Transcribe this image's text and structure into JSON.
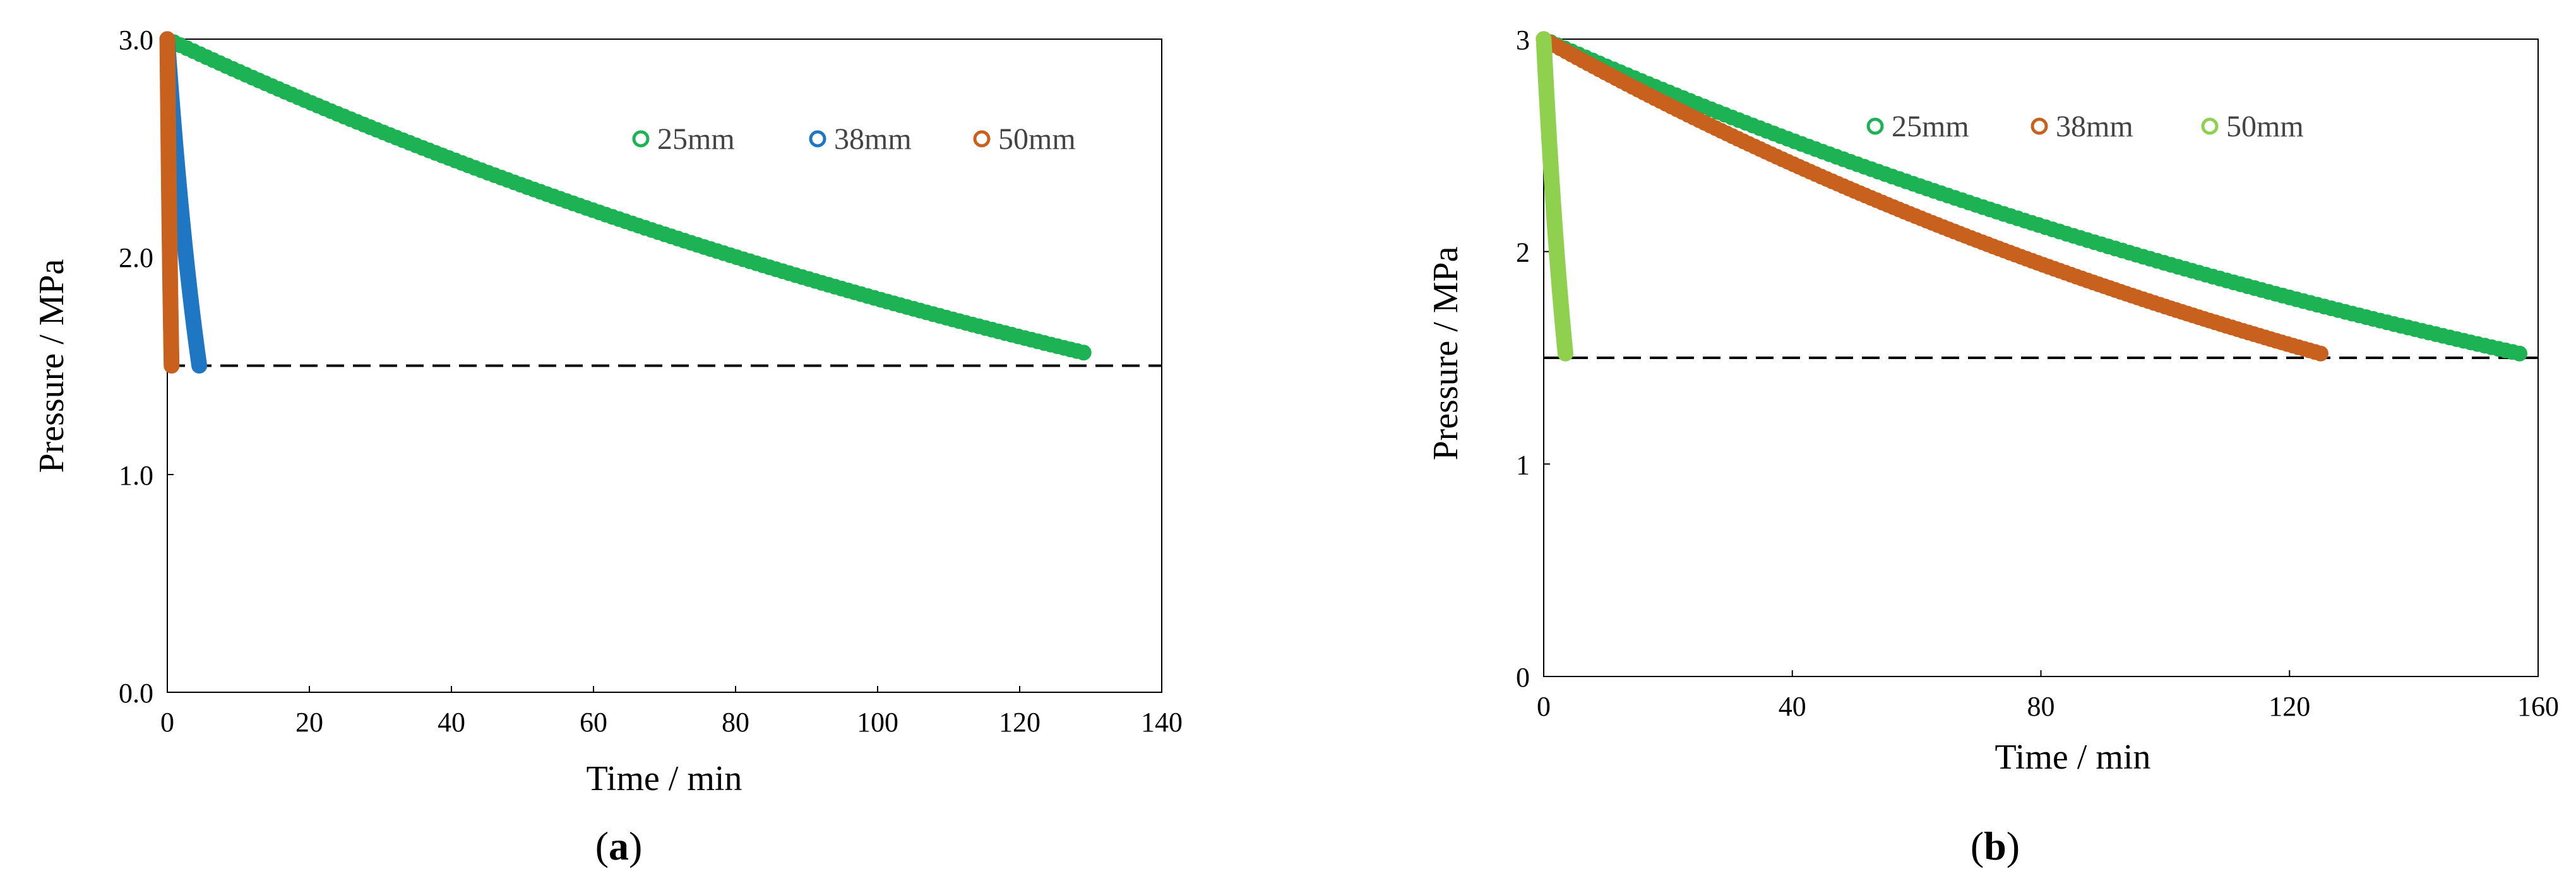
{
  "chart_data": [
    {
      "type": "scatter",
      "panel": "a",
      "caption_open": "(",
      "caption_letter": "a",
      "caption_close": ")",
      "xlabel": "Time / min",
      "ylabel": "Pressure / MPa",
      "xlim": [
        0,
        140
      ],
      "ylim": [
        0,
        3
      ],
      "x_ticks": [
        0,
        20,
        40,
        60,
        80,
        100,
        120,
        140
      ],
      "x_tick_labels": [
        "0",
        "20",
        "40",
        "60",
        "80",
        "100",
        "120",
        "140"
      ],
      "y_ticks": [
        0,
        1,
        2,
        3
      ],
      "y_tick_labels": [
        "0.0",
        "1.0",
        "2.0",
        "3.0"
      ],
      "reference_line": {
        "y": 1.5,
        "style": "dashed"
      },
      "series": [
        {
          "name": "25mm",
          "color": "#1db354",
          "t_end": 129,
          "p_end": 1.56,
          "k": 0.0034
        },
        {
          "name": "38mm",
          "color": "#1f77c4",
          "t_end": 4.5,
          "p_end": 1.5,
          "k": 0.12
        },
        {
          "name": "50mm",
          "color": "#c8601e",
          "t_end": 0.6,
          "p_end": 1.5,
          "k": 1.0
        }
      ]
    },
    {
      "type": "scatter",
      "panel": "b",
      "caption_open": "(",
      "caption_letter": "b",
      "caption_close": ")",
      "xlabel": "Time / min",
      "ylabel": "Pressure / MPa",
      "xlim": [
        0,
        160
      ],
      "ylim": [
        0,
        3
      ],
      "x_ticks": [
        0,
        40,
        80,
        120,
        160
      ],
      "x_tick_labels": [
        "0",
        "40",
        "80",
        "120",
        "160"
      ],
      "y_ticks": [
        0,
        1,
        2,
        3
      ],
      "y_tick_labels": [
        "0",
        "1",
        "2",
        "3"
      ],
      "reference_line": {
        "y": 1.5,
        "style": "dashed"
      },
      "series": [
        {
          "name": "25mm",
          "color": "#1db354",
          "t_end": 157,
          "p_end": 1.52,
          "k": 0.0025
        },
        {
          "name": "38mm",
          "color": "#c8601e",
          "t_end": 125,
          "p_end": 1.52,
          "k": 0.012
        },
        {
          "name": "50mm",
          "color": "#8fd14f",
          "t_end": 3.5,
          "p_end": 1.52,
          "k": 0.3
        }
      ]
    }
  ]
}
